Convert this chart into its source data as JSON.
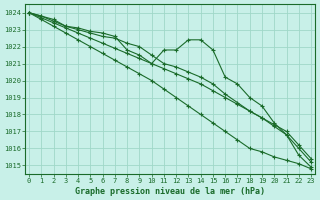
{
  "title": "Graphe pression niveau de la mer (hPa)",
  "bg_color": "#c8f0e8",
  "grid_color": "#a0d8c8",
  "line_color": "#1a6b2a",
  "x_values": [
    0,
    1,
    2,
    3,
    4,
    5,
    6,
    7,
    8,
    9,
    10,
    11,
    12,
    13,
    14,
    15,
    16,
    17,
    18,
    19,
    20,
    21,
    22,
    23
  ],
  "series": [
    [
      1024.0,
      1023.8,
      1023.6,
      1023.2,
      1023.1,
      1022.9,
      1022.8,
      1022.6,
      1021.8,
      1021.5,
      1021.0,
      1021.8,
      1021.8,
      1022.4,
      1022.4,
      1021.8,
      1020.2,
      1019.8,
      1019.0,
      1018.5,
      1017.5,
      1016.8,
      1015.6,
      1014.9
    ],
    [
      1024.0,
      1023.8,
      1023.5,
      1023.2,
      1023.0,
      1022.8,
      1022.6,
      1022.5,
      1022.2,
      1022.0,
      1021.5,
      1021.0,
      1020.8,
      1020.5,
      1020.2,
      1019.8,
      1019.2,
      1018.7,
      1018.2,
      1017.8,
      1017.3,
      1016.8,
      1016.0,
      1015.2
    ],
    [
      1024.0,
      1023.7,
      1023.4,
      1023.1,
      1022.8,
      1022.5,
      1022.2,
      1021.9,
      1021.6,
      1021.3,
      1021.0,
      1020.7,
      1020.4,
      1020.1,
      1019.8,
      1019.4,
      1019.0,
      1018.6,
      1018.2,
      1017.8,
      1017.4,
      1017.0,
      1016.2,
      1015.4
    ],
    [
      1024.0,
      1023.6,
      1023.2,
      1022.8,
      1022.4,
      1022.0,
      1021.6,
      1021.2,
      1020.8,
      1020.4,
      1020.0,
      1019.5,
      1019.0,
      1018.5,
      1018.0,
      1017.5,
      1017.0,
      1016.5,
      1016.0,
      1015.8,
      1015.5,
      1015.3,
      1015.1,
      1014.8
    ]
  ],
  "ylim": [
    1014.5,
    1024.5
  ],
  "yticks": [
    1015,
    1016,
    1017,
    1018,
    1019,
    1020,
    1021,
    1022,
    1023,
    1024
  ],
  "xlim": [
    -0.3,
    23.3
  ],
  "xticks": [
    0,
    1,
    2,
    3,
    4,
    5,
    6,
    7,
    8,
    9,
    10,
    11,
    12,
    13,
    14,
    15,
    16,
    17,
    18,
    19,
    20,
    21,
    22,
    23
  ]
}
